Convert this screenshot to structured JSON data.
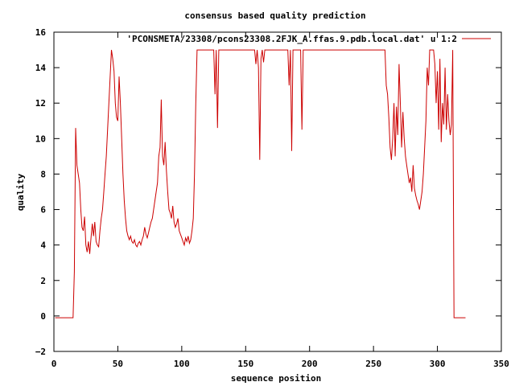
{
  "chart_data": {
    "type": "line",
    "title": "consensus based quality prediction",
    "xlabel": "sequence position",
    "ylabel": "quality",
    "xlim": [
      0,
      350
    ],
    "ylim": [
      -2,
      16
    ],
    "x_ticks": [
      0,
      50,
      100,
      150,
      200,
      250,
      300,
      350
    ],
    "y_ticks": [
      -2,
      0,
      2,
      4,
      6,
      8,
      10,
      12,
      14,
      16
    ],
    "x_tick_labels": [
      "0",
      "50",
      "100",
      "150",
      "200",
      "250",
      "300",
      "350"
    ],
    "y_tick_labels": [
      "−2",
      "0",
      "2",
      "4",
      "6",
      "8",
      "10",
      "12",
      "14",
      "16"
    ],
    "grid": false,
    "legend_position": "top-right",
    "series": [
      {
        "name": "'PCONSMETA/23308/pcons23308.2FJK_A.ffas.9.pdb.local.dat' u 1:2",
        "color": "#cc0000",
        "points": [
          [
            1,
            -0.1
          ],
          [
            15,
            -0.1
          ],
          [
            16,
            2.5
          ],
          [
            17,
            10.6
          ],
          [
            18,
            8.5
          ],
          [
            19,
            8.0
          ],
          [
            20,
            7.5
          ],
          [
            21,
            6.0
          ],
          [
            22,
            5.0
          ],
          [
            23,
            4.8
          ],
          [
            24,
            5.6
          ],
          [
            25,
            4.0
          ],
          [
            26,
            3.6
          ],
          [
            27,
            4.2
          ],
          [
            28,
            3.5
          ],
          [
            29,
            4.4
          ],
          [
            30,
            5.2
          ],
          [
            31,
            4.5
          ],
          [
            32,
            5.3
          ],
          [
            33,
            4.2
          ],
          [
            34,
            4.0
          ],
          [
            35,
            3.9
          ],
          [
            36,
            4.8
          ],
          [
            37,
            5.5
          ],
          [
            38,
            6.0
          ],
          [
            39,
            7.0
          ],
          [
            40,
            8.0
          ],
          [
            41,
            9.0
          ],
          [
            42,
            10.5
          ],
          [
            43,
            12.0
          ],
          [
            44,
            13.5
          ],
          [
            45,
            15.0
          ],
          [
            46,
            14.5
          ],
          [
            47,
            13.8
          ],
          [
            48,
            12.0
          ],
          [
            49,
            11.2
          ],
          [
            50,
            11.0
          ],
          [
            51,
            13.5
          ],
          [
            52,
            12.0
          ],
          [
            53,
            10.0
          ],
          [
            54,
            8.0
          ],
          [
            55,
            6.5
          ],
          [
            56,
            5.5
          ],
          [
            57,
            4.8
          ],
          [
            58,
            4.5
          ],
          [
            59,
            4.3
          ],
          [
            60,
            4.5
          ],
          [
            61,
            4.2
          ],
          [
            62,
            4.1
          ],
          [
            63,
            4.3
          ],
          [
            64,
            4.0
          ],
          [
            65,
            3.9
          ],
          [
            66,
            4.1
          ],
          [
            67,
            4.2
          ],
          [
            68,
            4.0
          ],
          [
            69,
            4.3
          ],
          [
            70,
            4.5
          ],
          [
            71,
            5.0
          ],
          [
            72,
            4.6
          ],
          [
            73,
            4.4
          ],
          [
            74,
            4.7
          ],
          [
            75,
            5.0
          ],
          [
            76,
            5.3
          ],
          [
            77,
            5.5
          ],
          [
            78,
            6.0
          ],
          [
            79,
            6.5
          ],
          [
            80,
            7.0
          ],
          [
            81,
            7.5
          ],
          [
            82,
            9.0
          ],
          [
            83,
            9.5
          ],
          [
            84,
            12.2
          ],
          [
            85,
            9.0
          ],
          [
            86,
            8.5
          ],
          [
            87,
            9.8
          ],
          [
            88,
            8.2
          ],
          [
            89,
            7.0
          ],
          [
            90,
            6.0
          ],
          [
            91,
            5.8
          ],
          [
            92,
            5.5
          ],
          [
            93,
            6.2
          ],
          [
            94,
            5.3
          ],
          [
            95,
            5.0
          ],
          [
            96,
            5.2
          ],
          [
            97,
            5.5
          ],
          [
            98,
            4.8
          ],
          [
            99,
            4.6
          ],
          [
            100,
            4.4
          ],
          [
            101,
            4.2
          ],
          [
            102,
            4.0
          ],
          [
            103,
            4.4
          ],
          [
            104,
            4.2
          ],
          [
            105,
            4.5
          ],
          [
            106,
            4.1
          ],
          [
            107,
            4.3
          ],
          [
            108,
            4.8
          ],
          [
            109,
            5.5
          ],
          [
            110,
            8.0
          ],
          [
            111,
            12.0
          ],
          [
            112,
            15.0
          ],
          [
            125,
            15.0
          ],
          [
            126,
            12.5
          ],
          [
            127,
            15.0
          ],
          [
            128,
            10.6
          ],
          [
            129,
            15.0
          ],
          [
            157,
            15.0
          ],
          [
            158,
            14.2
          ],
          [
            159,
            15.0
          ],
          [
            160,
            14.0
          ],
          [
            161,
            8.8
          ],
          [
            162,
            14.5
          ],
          [
            163,
            15.0
          ],
          [
            164,
            14.3
          ],
          [
            165,
            15.0
          ],
          [
            183,
            15.0
          ],
          [
            184,
            13.0
          ],
          [
            185,
            15.0
          ],
          [
            186,
            9.3
          ],
          [
            187,
            15.0
          ],
          [
            193,
            15.0
          ],
          [
            194,
            10.5
          ],
          [
            195,
            15.0
          ],
          [
            259,
            15.0
          ],
          [
            260,
            13.0
          ],
          [
            261,
            12.5
          ],
          [
            262,
            11.2
          ],
          [
            263,
            9.5
          ],
          [
            264,
            8.8
          ],
          [
            265,
            10.0
          ],
          [
            266,
            12.0
          ],
          [
            267,
            9.0
          ],
          [
            268,
            11.8
          ],
          [
            269,
            10.2
          ],
          [
            270,
            14.2
          ],
          [
            271,
            12.0
          ],
          [
            272,
            9.5
          ],
          [
            273,
            11.5
          ],
          [
            274,
            10.0
          ],
          [
            275,
            9.0
          ],
          [
            276,
            8.5
          ],
          [
            277,
            8.0
          ],
          [
            278,
            7.5
          ],
          [
            279,
            7.8
          ],
          [
            280,
            7.0
          ],
          [
            281,
            8.5
          ],
          [
            282,
            7.2
          ],
          [
            283,
            6.8
          ],
          [
            284,
            6.5
          ],
          [
            285,
            6.3
          ],
          [
            286,
            6.0
          ],
          [
            287,
            6.5
          ],
          [
            288,
            7.0
          ],
          [
            289,
            8.0
          ],
          [
            290,
            9.5
          ],
          [
            291,
            11.0
          ],
          [
            292,
            14.0
          ],
          [
            293,
            13.0
          ],
          [
            294,
            15.0
          ],
          [
            297,
            15.0
          ],
          [
            298,
            14.2
          ],
          [
            299,
            12.0
          ],
          [
            300,
            13.8
          ],
          [
            301,
            10.5
          ],
          [
            302,
            14.5
          ],
          [
            303,
            9.8
          ],
          [
            304,
            12.0
          ],
          [
            305,
            10.8
          ],
          [
            306,
            14.0
          ],
          [
            307,
            10.5
          ],
          [
            308,
            12.5
          ],
          [
            309,
            11.0
          ],
          [
            310,
            10.2
          ],
          [
            311,
            10.8
          ],
          [
            312,
            15.0
          ],
          [
            313,
            -0.1
          ],
          [
            322,
            -0.1
          ]
        ]
      }
    ]
  }
}
